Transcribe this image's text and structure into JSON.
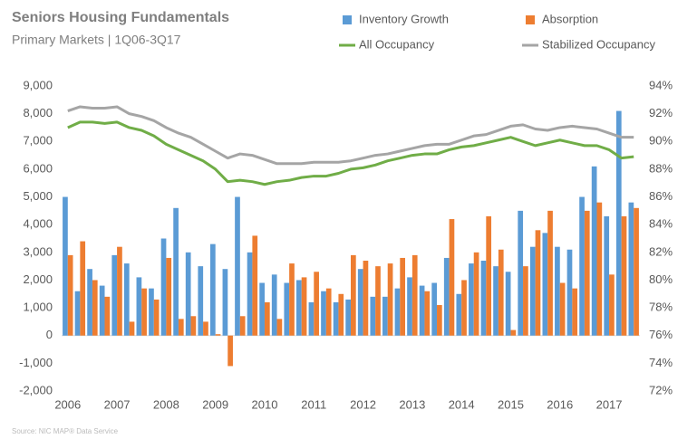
{
  "chart_data": {
    "type": "bar",
    "title": "Seniors Housing Fundamentals",
    "subtitle": "Primary Markets | 1Q06-3Q17",
    "source": "Source: NIC MAP® Data Service",
    "categories": [
      "2006",
      null,
      null,
      null,
      "2007",
      null,
      null,
      null,
      "2008",
      null,
      null,
      null,
      "2009",
      null,
      null,
      null,
      "2010",
      null,
      null,
      null,
      "2011",
      null,
      null,
      null,
      "2012",
      null,
      null,
      null,
      "2013",
      null,
      null,
      null,
      "2014",
      null,
      null,
      null,
      "2015",
      null,
      null,
      null,
      "2016",
      null,
      null,
      null,
      "2017",
      null,
      null
    ],
    "series": [
      {
        "name": "Inventory Growth",
        "type": "bar",
        "color": "#5b9bd5",
        "values": [
          5000,
          1600,
          2400,
          1800,
          2900,
          2600,
          2100,
          1700,
          3500,
          4600,
          3000,
          2500,
          3300,
          2400,
          5000,
          3000,
          1900,
          2200,
          1900,
          2000,
          1200,
          1600,
          1200,
          1300,
          2400,
          1400,
          1400,
          1700,
          2100,
          1800,
          1900,
          2800,
          1500,
          2600,
          2700,
          2500,
          2300,
          4500,
          3200,
          3700,
          3200,
          3100,
          5000,
          6100,
          4300,
          8100,
          4800
        ]
      },
      {
        "name": "Absorption",
        "type": "bar",
        "color": "#ed7d31",
        "values": [
          2900,
          3400,
          2000,
          1400,
          3200,
          500,
          1700,
          1300,
          2800,
          600,
          700,
          500,
          50,
          -1100,
          700,
          3600,
          1200,
          600,
          2600,
          2100,
          2300,
          1700,
          1500,
          2900,
          2700,
          2500,
          2600,
          2800,
          2900,
          1600,
          1100,
          4200,
          2000,
          3000,
          4300,
          3100,
          200,
          2500,
          3800,
          4500,
          1900,
          1700,
          4500,
          4800,
          2200,
          4300,
          4600
        ]
      },
      {
        "name": "All Occupancy",
        "type": "line",
        "axis": "y2",
        "color": "#70ad47",
        "values": [
          91.0,
          91.4,
          91.4,
          91.3,
          91.4,
          91.0,
          90.8,
          90.4,
          89.8,
          89.4,
          89.0,
          88.6,
          88.0,
          87.1,
          87.2,
          87.1,
          86.9,
          87.1,
          87.2,
          87.4,
          87.5,
          87.5,
          87.7,
          88.0,
          88.1,
          88.3,
          88.6,
          88.8,
          89.0,
          89.1,
          89.1,
          89.4,
          89.6,
          89.7,
          89.9,
          90.1,
          90.3,
          90.0,
          89.7,
          89.9,
          90.1,
          89.9,
          89.7,
          89.7,
          89.4,
          88.8,
          88.9
        ]
      },
      {
        "name": "Stabilized Occupancy",
        "type": "line",
        "axis": "y2",
        "color": "#a5a5a5",
        "values": [
          92.2,
          92.5,
          92.4,
          92.4,
          92.5,
          92.0,
          91.8,
          91.5,
          91.0,
          90.6,
          90.3,
          89.8,
          89.3,
          88.8,
          89.1,
          89.0,
          88.7,
          88.4,
          88.4,
          88.4,
          88.5,
          88.5,
          88.5,
          88.6,
          88.8,
          89.0,
          89.1,
          89.3,
          89.5,
          89.7,
          89.8,
          89.8,
          90.1,
          90.4,
          90.5,
          90.8,
          91.1,
          91.2,
          90.9,
          90.8,
          91.0,
          91.1,
          91.0,
          90.9,
          90.6,
          90.3,
          90.3
        ]
      }
    ],
    "ylim": [
      -2000,
      9000
    ],
    "yticks": [
      {
        "value": -2000,
        "label": "-2,000"
      },
      {
        "value": -1000,
        "label": "-1,000"
      },
      0,
      {
        "value": 1000,
        "label": "1,000"
      },
      {
        "value": 2000,
        "label": "2,000"
      },
      {
        "value": 3000,
        "label": "3,000"
      },
      {
        "value": 4000,
        "label": "4,000"
      },
      {
        "value": 5000,
        "label": "5,000"
      },
      {
        "value": 6000,
        "label": "6,000"
      },
      {
        "value": 7000,
        "label": "7,000"
      },
      {
        "value": 8000,
        "label": "8,000"
      },
      {
        "value": 9000,
        "label": "9,000"
      }
    ],
    "y2lim": [
      72,
      94
    ],
    "y2ticks": [
      {
        "value": 72,
        "label": "72%"
      },
      {
        "value": 74,
        "label": "74%"
      },
      {
        "value": 76,
        "label": "76%"
      },
      {
        "value": 78,
        "label": "78%"
      },
      {
        "value": 80,
        "label": "80%"
      },
      {
        "value": 82,
        "label": "82%"
      },
      {
        "value": 84,
        "label": "84%"
      },
      {
        "value": 86,
        "label": "86%"
      },
      {
        "value": 88,
        "label": "88%"
      },
      {
        "value": 90,
        "label": "90%"
      },
      {
        "value": 92,
        "label": "92%"
      },
      {
        "value": 94,
        "label": "94%"
      }
    ]
  }
}
